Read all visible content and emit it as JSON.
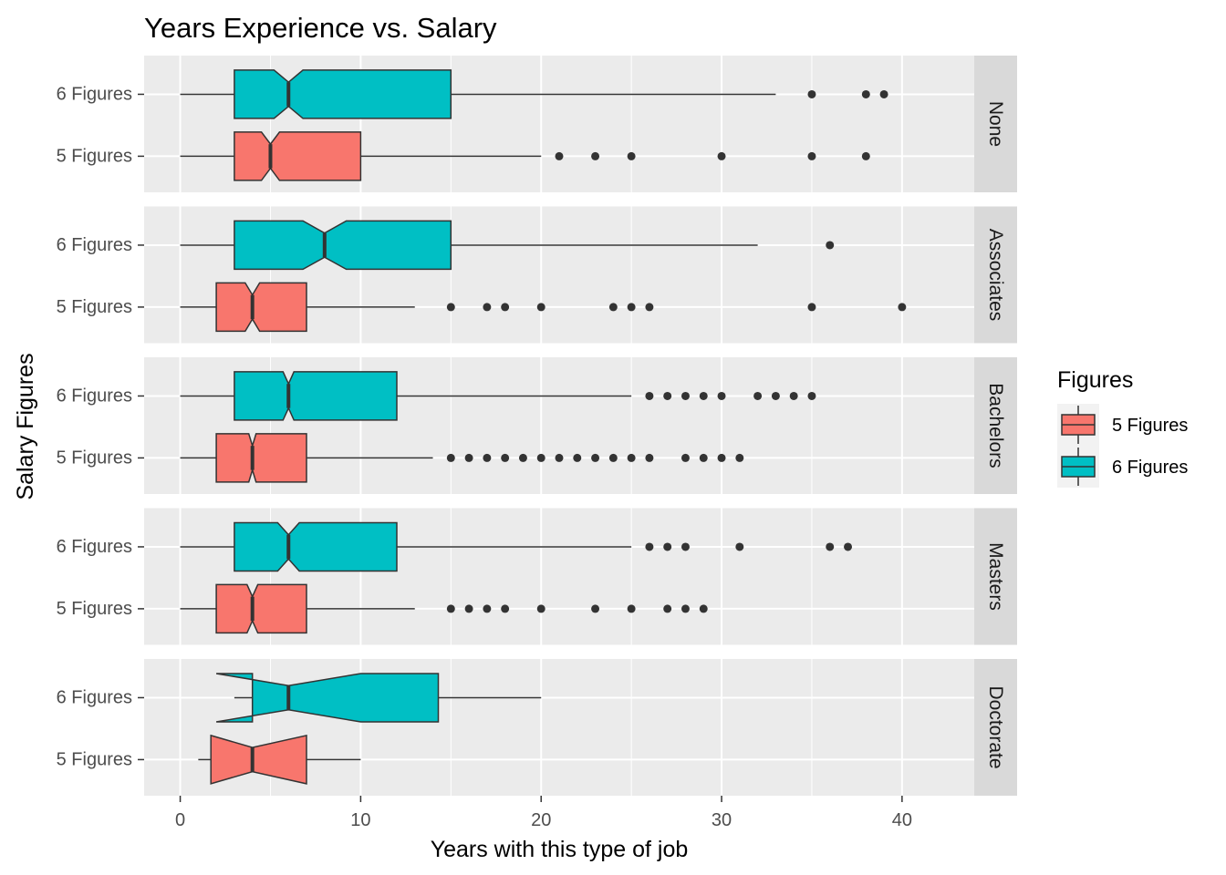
{
  "chart_data": {
    "type": "boxplot",
    "title": "Years Experience vs. Salary",
    "xlabel": "Years with this type of job",
    "ylabel": "Salary Figures",
    "xlim": [
      -2,
      44
    ],
    "x_ticks": [
      0,
      10,
      20,
      30,
      40
    ],
    "categories": [
      "6 Figures",
      "5 Figures"
    ],
    "legend": {
      "title": "Figures",
      "position": "right",
      "items": [
        {
          "label": "5 Figures",
          "color": "#F8766D"
        },
        {
          "label": "6 Figures",
          "color": "#00BFC4"
        }
      ]
    },
    "notched": true,
    "grid": true,
    "panels": [
      {
        "label": "None",
        "boxes": [
          {
            "group": "6 Figures",
            "min": 0,
            "q1": 3,
            "median": 6,
            "q3": 15,
            "max": 33,
            "notch": [
              5.2,
              6.8
            ],
            "outliers": [
              35,
              38,
              39
            ]
          },
          {
            "group": "5 Figures",
            "min": 0,
            "q1": 3,
            "median": 5,
            "q3": 10,
            "max": 20,
            "notch": [
              4.5,
              5.5
            ],
            "outliers": [
              21,
              23,
              25,
              30,
              35,
              38
            ]
          }
        ]
      },
      {
        "label": "Associates",
        "boxes": [
          {
            "group": "6 Figures",
            "min": 0,
            "q1": 3,
            "median": 8,
            "q3": 15,
            "max": 32,
            "notch": [
              6.8,
              9.2
            ],
            "outliers": [
              36
            ]
          },
          {
            "group": "5 Figures",
            "min": 0,
            "q1": 2,
            "median": 4,
            "q3": 7,
            "max": 13,
            "notch": [
              3.6,
              4.4
            ],
            "outliers": [
              15,
              17,
              18,
              20,
              24,
              25,
              26,
              35,
              40
            ]
          }
        ]
      },
      {
        "label": "Bachelors",
        "boxes": [
          {
            "group": "6 Figures",
            "min": 0,
            "q1": 3,
            "median": 6,
            "q3": 12,
            "max": 25,
            "notch": [
              5.7,
              6.3
            ],
            "outliers": [
              26,
              27,
              28,
              29,
              30,
              32,
              33,
              34,
              35
            ]
          },
          {
            "group": "5 Figures",
            "min": 0,
            "q1": 2,
            "median": 4,
            "q3": 7,
            "max": 14,
            "notch": [
              3.8,
              4.2
            ],
            "outliers": [
              15,
              16,
              17,
              18,
              19,
              20,
              21,
              22,
              23,
              24,
              25,
              26,
              28,
              29,
              30,
              31
            ]
          }
        ]
      },
      {
        "label": "Masters",
        "boxes": [
          {
            "group": "6 Figures",
            "min": 0,
            "q1": 3,
            "median": 6,
            "q3": 12,
            "max": 25,
            "notch": [
              5.4,
              6.6
            ],
            "outliers": [
              26,
              27,
              28,
              31,
              36,
              37
            ]
          },
          {
            "group": "5 Figures",
            "min": 0,
            "q1": 2,
            "median": 4,
            "q3": 7,
            "max": 13,
            "notch": [
              3.7,
              4.3
            ],
            "outliers": [
              15,
              16,
              17,
              18,
              20,
              23,
              25,
              27,
              28,
              29
            ]
          }
        ]
      },
      {
        "label": "Doctorate",
        "boxes": [
          {
            "group": "6 Figures",
            "min": 3,
            "q1": 4,
            "median": 6,
            "q3": 14.3,
            "max": 20,
            "notch": [
              2,
              10
            ],
            "outliers": []
          },
          {
            "group": "5 Figures",
            "min": 1,
            "q1": 1.7,
            "median": 4,
            "q3": 7,
            "max": 10,
            "notch": [
              1.7,
              7
            ],
            "outliers": []
          }
        ]
      }
    ]
  }
}
